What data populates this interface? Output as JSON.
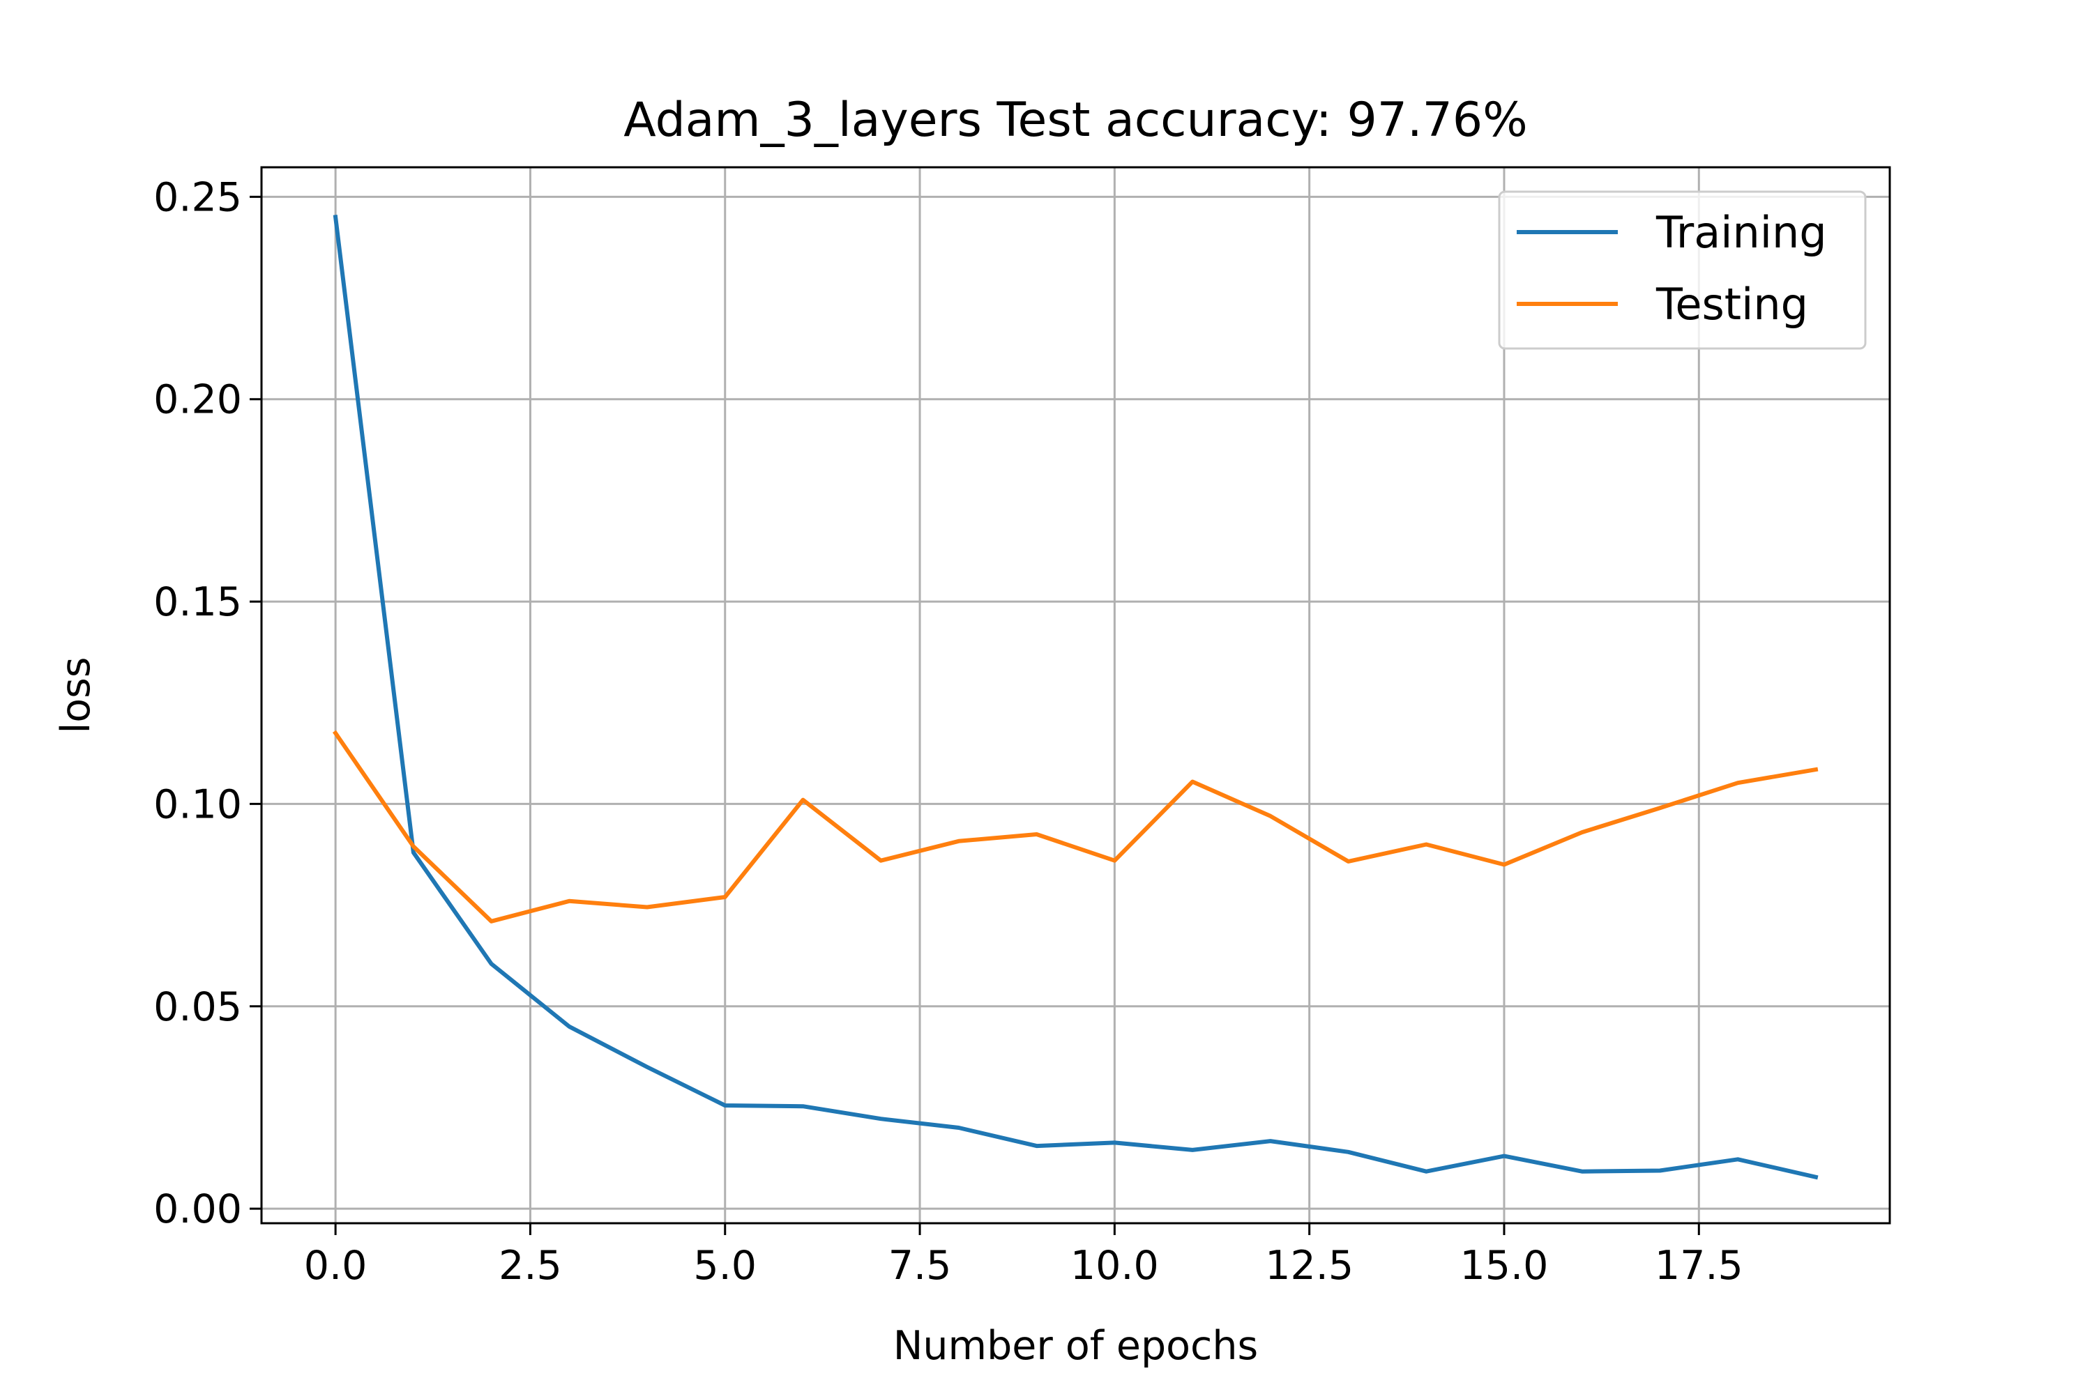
{
  "chart_data": {
    "type": "line",
    "title": "Adam_3_layers Test accuracy: 97.76%",
    "xlabel": "Number of epochs",
    "ylabel": "loss",
    "x": [
      0,
      1,
      2,
      3,
      4,
      5,
      6,
      7,
      8,
      9,
      10,
      11,
      12,
      13,
      14,
      15,
      16,
      17,
      18,
      19
    ],
    "series": [
      {
        "name": "Training",
        "color": "#1f77b4",
        "values": [
          0.245,
          0.088,
          0.0605,
          0.045,
          0.035,
          0.0255,
          0.0253,
          0.0222,
          0.02,
          0.0155,
          0.0163,
          0.0145,
          0.0167,
          0.014,
          0.0092,
          0.013,
          0.0092,
          0.0094,
          0.0122,
          0.0078
        ]
      },
      {
        "name": "Testing",
        "color": "#ff7f0e",
        "values": [
          0.1175,
          0.0895,
          0.071,
          0.076,
          0.0745,
          0.077,
          0.101,
          0.086,
          0.0908,
          0.0925,
          0.086,
          0.1055,
          0.097,
          0.0858,
          0.09,
          0.085,
          0.093,
          0.099,
          0.1052,
          0.1085
        ]
      }
    ],
    "xlim": [
      -0.95,
      19.95
    ],
    "ylim": [
      -0.0036,
      0.2573
    ],
    "xticks": [
      0.0,
      2.5,
      5.0,
      7.5,
      10.0,
      12.5,
      15.0,
      17.5
    ],
    "xtick_labels": [
      "0.0",
      "2.5",
      "5.0",
      "7.5",
      "10.0",
      "12.5",
      "15.0",
      "17.5"
    ],
    "yticks": [
      0.0,
      0.05,
      0.1,
      0.15,
      0.2,
      0.25
    ],
    "ytick_labels": [
      "0.00",
      "0.05",
      "0.10",
      "0.15",
      "0.20",
      "0.25"
    ],
    "grid": true,
    "legend_position": "top-right"
  }
}
